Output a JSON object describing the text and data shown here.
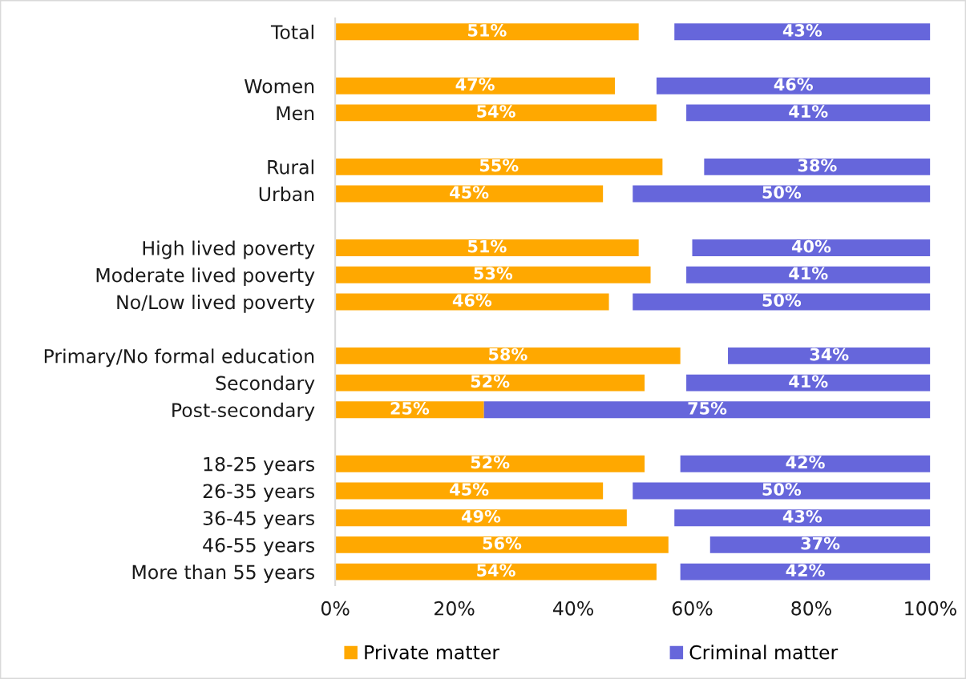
{
  "chart_data": {
    "type": "bar",
    "orientation": "horizontal",
    "categories": [
      "Total",
      null,
      "Women",
      "Men",
      null,
      "Rural",
      "Urban",
      null,
      "High lived poverty",
      "Moderate lived poverty",
      "No/Low lived poverty",
      null,
      "Primary/No formal education",
      "Secondary",
      "Post-secondary",
      null,
      "18-25 years",
      "26-35 years",
      "36-45 years",
      "46-55 years",
      "More than 55 years"
    ],
    "series": [
      {
        "name": "Private matter",
        "color": "#ffa800",
        "values": [
          51,
          null,
          47,
          54,
          null,
          55,
          45,
          null,
          51,
          53,
          46,
          null,
          58,
          52,
          25,
          null,
          52,
          45,
          49,
          56,
          54
        ],
        "base": [
          0,
          null,
          0,
          0,
          null,
          0,
          0,
          null,
          0,
          0,
          0,
          null,
          0,
          0,
          0,
          null,
          0,
          0,
          0,
          0,
          0
        ],
        "value_labels": [
          "51%",
          null,
          "47%",
          "54%",
          null,
          "55%",
          "45%",
          null,
          "51%",
          "53%",
          "46%",
          null,
          "58%",
          "52%",
          "25%",
          null,
          "52%",
          "45%",
          "49%",
          "56%",
          "54%"
        ]
      },
      {
        "name": "Criminal matter",
        "color": "#6666db",
        "values": [
          43,
          null,
          46,
          41,
          null,
          38,
          50,
          null,
          40,
          41,
          50,
          null,
          34,
          41,
          75,
          null,
          42,
          50,
          43,
          37,
          42
        ],
        "base": [
          57,
          null,
          54,
          59,
          null,
          62,
          50,
          null,
          60,
          59,
          50,
          null,
          66,
          59,
          25,
          null,
          58,
          50,
          57,
          63,
          58
        ],
        "value_labels": [
          "43%",
          null,
          "46%",
          "41%",
          null,
          "38%",
          "50%",
          null,
          "40%",
          "41%",
          "50%",
          null,
          "34%",
          "41%",
          "75%",
          null,
          "42%",
          "50%",
          "43%",
          "37%",
          "42%"
        ]
      }
    ],
    "xlim": [
      0,
      100
    ],
    "xticks": [
      {
        "value": 0,
        "label": "0%"
      },
      {
        "value": 20,
        "label": "20%"
      },
      {
        "value": 40,
        "label": "40%"
      },
      {
        "value": 60,
        "label": "60%"
      },
      {
        "value": 80,
        "label": "80%"
      },
      {
        "value": 100,
        "label": "100%"
      }
    ],
    "grid": false,
    "legend": "bottom"
  }
}
